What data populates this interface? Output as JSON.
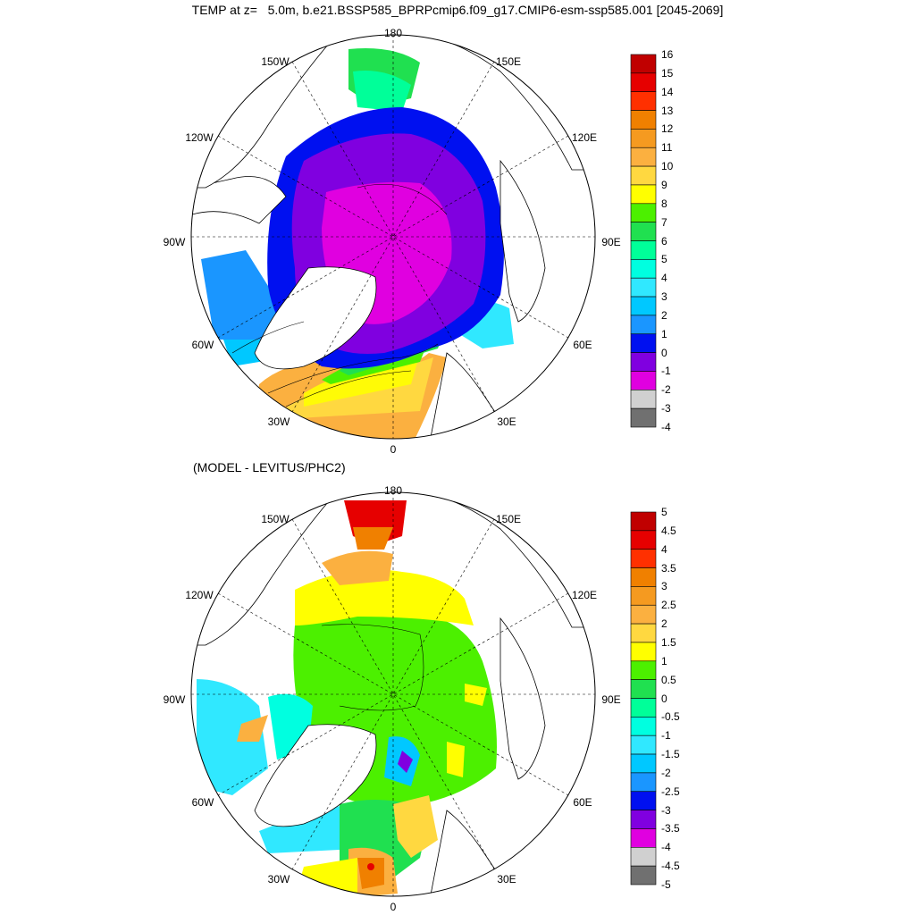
{
  "title": "TEMP at z=   5.0m, b.e21.BSSP585_BPRPcmip6.f09_g17.CMIP6-esm-ssp585.001 [2045-2069]",
  "subtitle": "(MODEL - LEVITUS/PHC2)",
  "lon_labels": [
    "180",
    "150E",
    "120E",
    "90E",
    "60E",
    "30E",
    "0",
    "30W",
    "60W",
    "90W",
    "120W",
    "150W"
  ],
  "top_map": {
    "colorbar": {
      "labels": [
        "16",
        "15",
        "14",
        "13",
        "12",
        "11",
        "10",
        "9",
        "8",
        "7",
        "6",
        "5",
        "4",
        "3",
        "2",
        "1",
        "0",
        "-1",
        "-2",
        "-3",
        "-4"
      ],
      "colors": [
        "#c00000",
        "#e60000",
        "#ff3000",
        "#f08000",
        "#f59a20",
        "#fbb040",
        "#ffd840",
        "#ffff00",
        "#4cf000",
        "#20e050",
        "#00ff99",
        "#00ffe0",
        "#30e8ff",
        "#00c8ff",
        "#1a96ff",
        "#0010f0",
        "#8000e0",
        "#e000e0",
        "#d0d0d0",
        "#707070"
      ]
    }
  },
  "bottom_map": {
    "colorbar": {
      "labels": [
        "5",
        "4.5",
        "4",
        "3.5",
        "3",
        "2.5",
        "2",
        "1.5",
        "1",
        "0.5",
        "0",
        "-0.5",
        "-1",
        "-1.5",
        "-2",
        "-2.5",
        "-3",
        "-3.5",
        "-4",
        "-4.5",
        "-5"
      ],
      "colors": [
        "#c00000",
        "#e60000",
        "#ff3000",
        "#f08000",
        "#f59a20",
        "#fbb040",
        "#ffd840",
        "#ffff00",
        "#4cf000",
        "#20e050",
        "#00ff99",
        "#00ffe0",
        "#30e8ff",
        "#00c8ff",
        "#1a96ff",
        "#0010f0",
        "#8000e0",
        "#e000e0",
        "#d0d0d0",
        "#707070"
      ]
    }
  }
}
